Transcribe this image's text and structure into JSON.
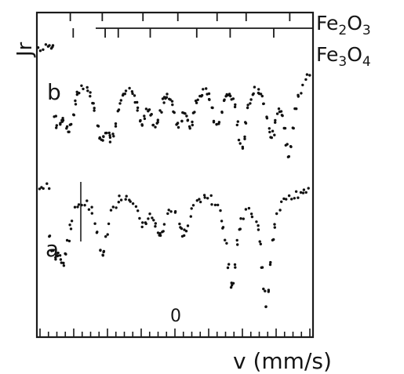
{
  "chart_data": {
    "type": "scatter",
    "ylabel": "Jr",
    "xlabel": "v (mm/s)",
    "x_zero_label": "0",
    "grid": false,
    "legend": "none",
    "series": [
      {
        "name": "b",
        "top_marker_label": "Fe",
        "top_marker_sub": "2",
        "top_marker_label2": "O",
        "top_marker_sub2": "3",
        "second_label": "Fe",
        "second_sub": "3",
        "second_label2": "O",
        "second_sub2": "4",
        "dips": [
          -8.1,
          -7.3,
          -5.1,
          -4.3,
          -2.3,
          -1.3,
          0.2,
          1.1,
          2.9,
          4.6,
          6.6,
          7.9
        ],
        "depths": [
          0.55,
          0.6,
          0.7,
          0.65,
          0.5,
          0.55,
          0.5,
          0.55,
          0.6,
          0.85,
          0.7,
          0.95
        ]
      },
      {
        "name": "a",
        "dips": [
          -8.3,
          -7.6,
          -5.0,
          -2.2,
          -1.0,
          0.6,
          3.9,
          6.3
        ],
        "depths": [
          0.45,
          0.5,
          0.55,
          0.25,
          0.35,
          0.35,
          0.8,
          0.95
        ]
      }
    ],
    "xlim": [
      -9.5,
      9.5
    ]
  },
  "labels": {
    "ylabel": "Jr",
    "xlabel": "v (mm/s)",
    "zero": "0",
    "series_b": "b",
    "series_a": "a",
    "fe2o3_base": "Fe",
    "fe2o3_sub1": "2",
    "fe2o3_mid": "O",
    "fe2o3_sub2": "3",
    "fe3o4_base": "Fe",
    "fe3o4_sub1": "3",
    "fe3o4_mid": "O",
    "fe3o4_sub2": "4"
  }
}
